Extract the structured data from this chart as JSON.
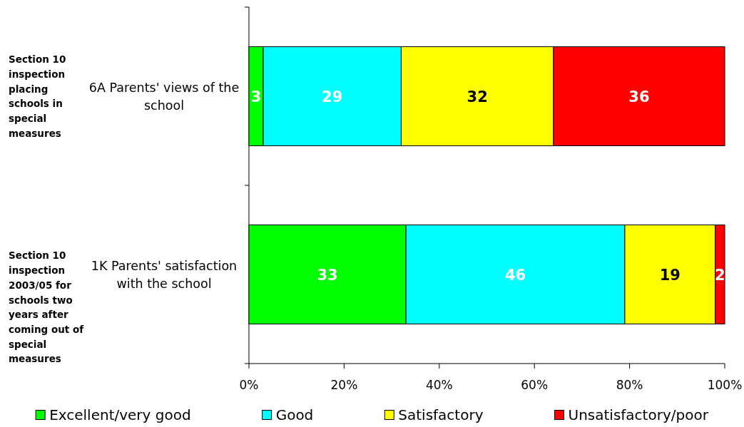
{
  "chart_data": {
    "type": "bar",
    "orientation": "horizontal",
    "stacked": true,
    "categories": [
      "6A Parents' views of the school",
      "1K Parents' satisfaction with the school"
    ],
    "series": [
      {
        "name": "Excellent/very good",
        "color": "#00ff00",
        "values": [
          3,
          33
        ]
      },
      {
        "name": "Good",
        "color": "#00ffff",
        "values": [
          29,
          46
        ]
      },
      {
        "name": "Satisfactory",
        "color": "#ffff00",
        "values": [
          32,
          19
        ]
      },
      {
        "name": "Unsatisfactory/poor",
        "color": "#ff0000",
        "values": [
          36,
          2
        ]
      }
    ],
    "xlim": [
      0,
      100
    ],
    "xticks": [
      {
        "value": 0,
        "label": "0%"
      },
      {
        "value": 20,
        "label": "20%"
      },
      {
        "value": 40,
        "label": "40%"
      },
      {
        "value": 60,
        "label": "60%"
      },
      {
        "value": 80,
        "label": "80%"
      },
      {
        "value": 100,
        "label": "100%"
      }
    ],
    "data_labels": true,
    "legend": "bottom",
    "annotations": [
      "Section 10 inspection placing schools in special measures",
      "Section 10 inspection 2003/05 for schools two years after coming out of special measures"
    ]
  }
}
